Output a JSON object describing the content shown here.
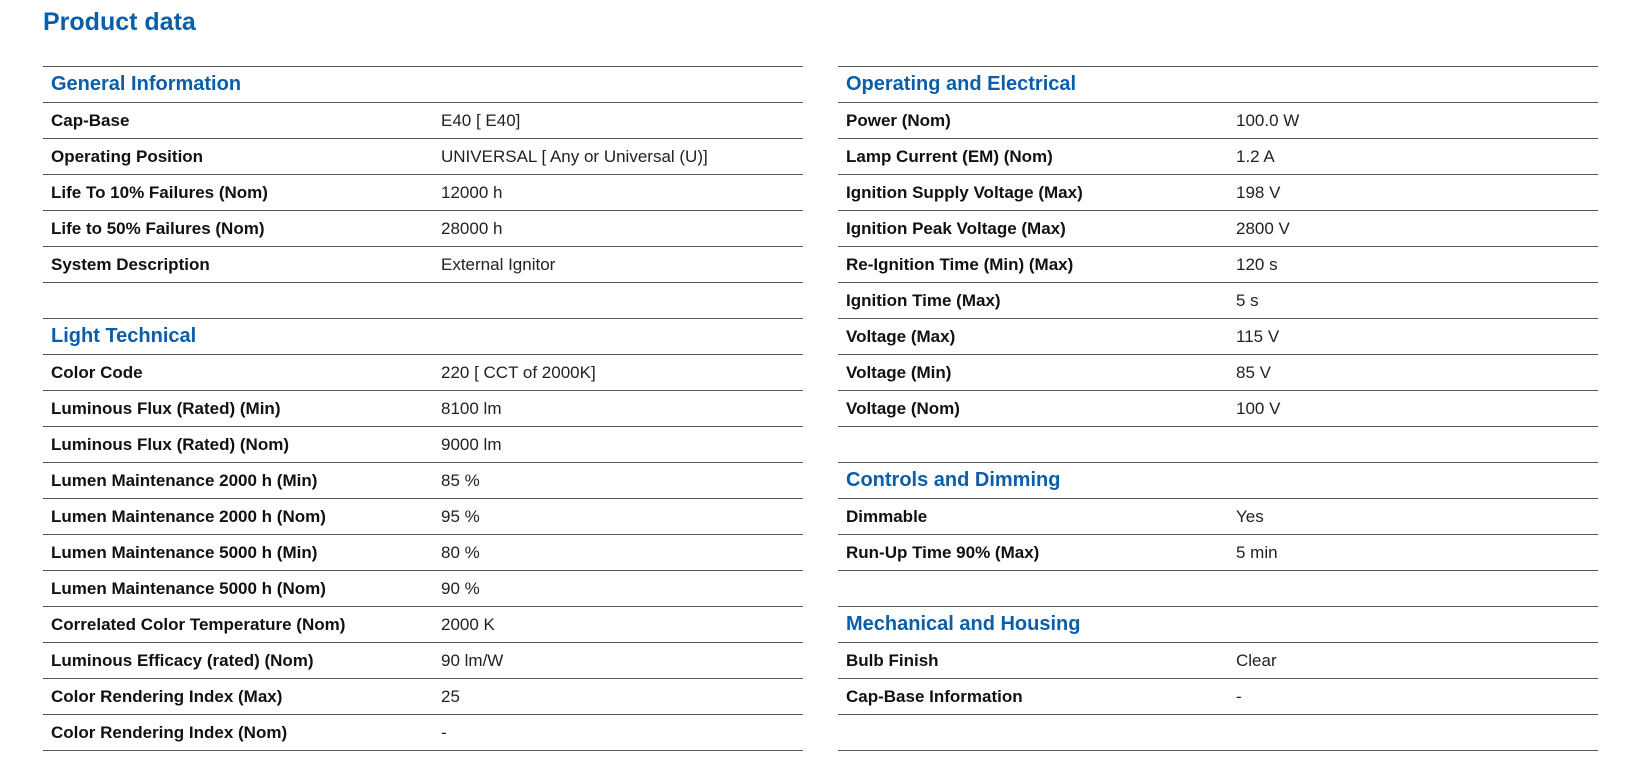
{
  "page_title": "Product data",
  "left_column": [
    {
      "type": "section",
      "title": "General Information"
    },
    {
      "type": "row",
      "label": "Cap-Base",
      "value": "E40 [ E40]"
    },
    {
      "type": "row",
      "label": "Operating Position",
      "value": "UNIVERSAL [ Any or Universal (U)]"
    },
    {
      "type": "row",
      "label": "Life To 10% Failures (Nom)",
      "value": "12000 h"
    },
    {
      "type": "row",
      "label": "Life to 50% Failures (Nom)",
      "value": "28000 h"
    },
    {
      "type": "row",
      "label": "System Description",
      "value": "External Ignitor"
    },
    {
      "type": "blank"
    },
    {
      "type": "section",
      "title": "Light Technical"
    },
    {
      "type": "row",
      "label": "Color Code",
      "value": "220 [ CCT of 2000K]"
    },
    {
      "type": "row",
      "label": "Luminous Flux (Rated) (Min)",
      "value": "8100 lm"
    },
    {
      "type": "row",
      "label": "Luminous Flux (Rated) (Nom)",
      "value": "9000 lm"
    },
    {
      "type": "row",
      "label": "Lumen Maintenance 2000 h (Min)",
      "value": "85 %"
    },
    {
      "type": "row",
      "label": "Lumen Maintenance 2000 h (Nom)",
      "value": "95 %"
    },
    {
      "type": "row",
      "label": "Lumen Maintenance 5000 h (Min)",
      "value": "80 %"
    },
    {
      "type": "row",
      "label": "Lumen Maintenance 5000 h (Nom)",
      "value": "90 %"
    },
    {
      "type": "row",
      "label": "Correlated Color Temperature (Nom)",
      "value": "2000 K"
    },
    {
      "type": "row",
      "label": "Luminous Efficacy (rated) (Nom)",
      "value": "90 lm/W"
    },
    {
      "type": "row",
      "label": "Color Rendering Index (Max)",
      "value": "25"
    },
    {
      "type": "row",
      "label": "Color Rendering Index (Nom)",
      "value": "-"
    }
  ],
  "right_column": [
    {
      "type": "section",
      "title": "Operating and Electrical"
    },
    {
      "type": "row",
      "label": "Power (Nom)",
      "value": "100.0 W"
    },
    {
      "type": "row",
      "label": "Lamp Current (EM) (Nom)",
      "value": "1.2 A"
    },
    {
      "type": "row",
      "label": "Ignition Supply Voltage (Max)",
      "value": "198 V"
    },
    {
      "type": "row",
      "label": "Ignition Peak Voltage (Max)",
      "value": "2800 V"
    },
    {
      "type": "row",
      "label": "Re-Ignition Time (Min) (Max)",
      "value": "120 s"
    },
    {
      "type": "row",
      "label": "Ignition Time (Max)",
      "value": "5 s"
    },
    {
      "type": "row",
      "label": "Voltage (Max)",
      "value": "115 V"
    },
    {
      "type": "row",
      "label": "Voltage (Min)",
      "value": "85 V"
    },
    {
      "type": "row",
      "label": "Voltage (Nom)",
      "value": "100 V"
    },
    {
      "type": "blank"
    },
    {
      "type": "section",
      "title": "Controls and Dimming"
    },
    {
      "type": "row",
      "label": "Dimmable",
      "value": "Yes"
    },
    {
      "type": "row",
      "label": "Run-Up Time 90% (Max)",
      "value": "5 min"
    },
    {
      "type": "blank"
    },
    {
      "type": "section",
      "title": "Mechanical and Housing"
    },
    {
      "type": "row",
      "label": "Bulb Finish",
      "value": "Clear"
    },
    {
      "type": "row",
      "label": "Cap-Base Information",
      "value": "-"
    },
    {
      "type": "blank"
    }
  ],
  "colors": {
    "accent": "#0b5ea8",
    "rule": "#555555"
  }
}
